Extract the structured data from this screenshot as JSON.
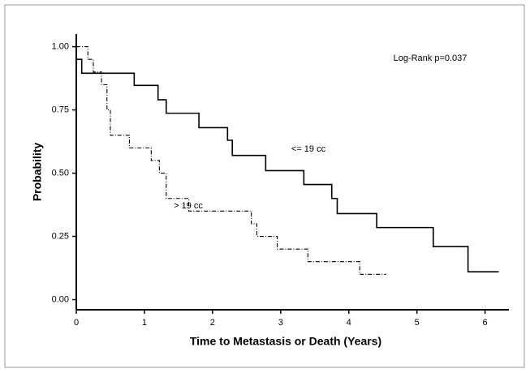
{
  "chart_data": {
    "type": "step",
    "xlabel": "Time to Metastasis or Death (Years)",
    "ylabel": "Probability",
    "annotations": [
      "Log-Rank p=0.037"
    ],
    "xlim": [
      0,
      6.35
    ],
    "ylim": [
      -0.04,
      1.05
    ],
    "xticks": [
      0,
      1,
      2,
      3,
      4,
      5,
      6
    ],
    "yticks": [
      {
        "value": 0,
        "label": "0.00"
      },
      {
        "value": 0.25,
        "label": "0.25"
      },
      {
        "value": 0.5,
        "label": "0.50"
      },
      {
        "value": 0.75,
        "label": "0.75"
      },
      {
        "value": 1,
        "label": "1.00"
      }
    ],
    "series": [
      {
        "name": "<= 19 cc",
        "color": "#000000",
        "line_style": "solid",
        "x": [
          0,
          0.08,
          0.85,
          1.2,
          1.32,
          1.8,
          2.22,
          2.29,
          2.78,
          3.34,
          3.75,
          3.83,
          4.41,
          5.24,
          5.75,
          6.2
        ],
        "values": [
          0.95,
          0.895,
          0.847,
          0.79,
          0.737,
          0.68,
          0.63,
          0.57,
          0.51,
          0.455,
          0.4,
          0.34,
          0.285,
          0.21,
          0.11,
          0.11
        ]
      },
      {
        "name": "> 19 cc",
        "color": "#000000",
        "line_style": "dashdot",
        "x": [
          0,
          0.17,
          0.25,
          0.37,
          0.45,
          0.5,
          0.78,
          1.1,
          1.22,
          1.32,
          1.65,
          2.57,
          2.65,
          2.95,
          3.4,
          4.16,
          4.55
        ],
        "values": [
          1.0,
          0.95,
          0.9,
          0.85,
          0.75,
          0.65,
          0.6,
          0.55,
          0.5,
          0.4,
          0.35,
          0.3,
          0.25,
          0.2,
          0.15,
          0.1,
          0.1
        ]
      }
    ]
  }
}
